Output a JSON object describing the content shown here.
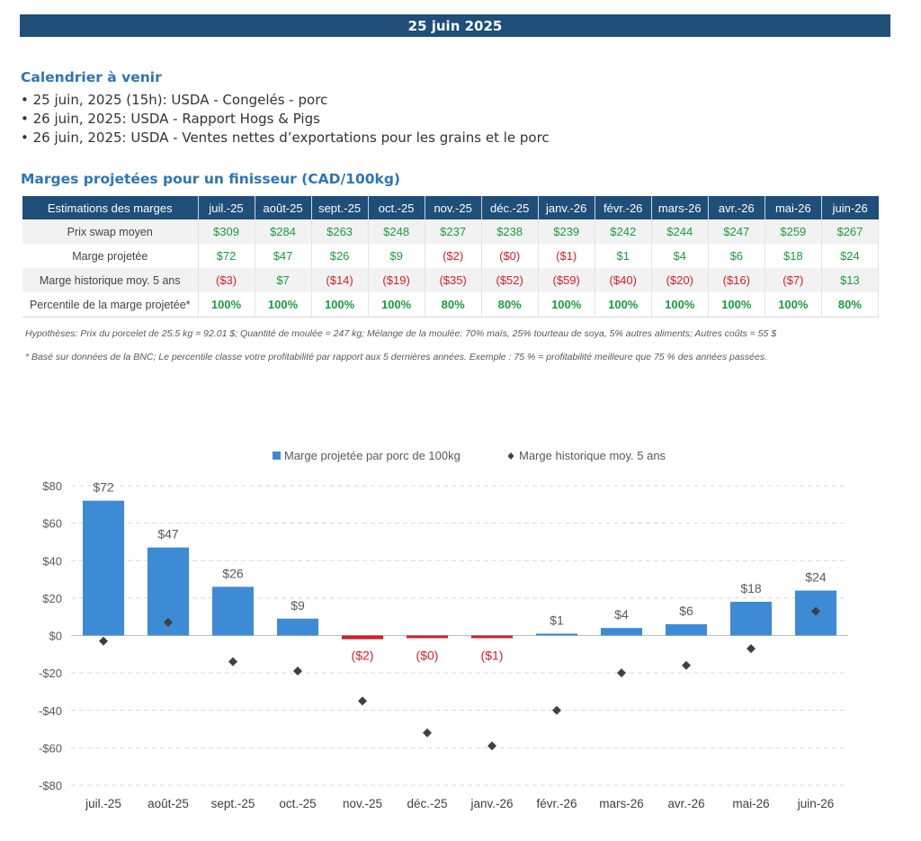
{
  "banner": {
    "date": "25 juin 2025"
  },
  "calendar": {
    "title": "Calendrier à venir",
    "items": [
      "25 juin, 2025 (15h): USDA - Congelés - porc",
      "26 juin, 2025: USDA - Rapport Hogs & Pigs",
      "26 juin, 2025: USDA - Ventes nettes d’exportations pour les grains et le porc"
    ]
  },
  "margins_table": {
    "title": "Marges projetées pour un finisseur (CAD/100kg)",
    "header_label": "Estimations des marges",
    "months": [
      "juil.-25",
      "août-25",
      "sept.-25",
      "oct.-25",
      "nov.-25",
      "déc.-25",
      "janv.-26",
      "févr.-26",
      "mars-26",
      "avr.-26",
      "mai-26",
      "juin-26"
    ],
    "rows": [
      {
        "label": "Prix swap moyen",
        "values": [
          "$309",
          "$284",
          "$263",
          "$248",
          "$237",
          "$238",
          "$239",
          "$242",
          "$244",
          "$247",
          "$259",
          "$267"
        ]
      },
      {
        "label": "Marge projetée",
        "values": [
          "$72",
          "$47",
          "$26",
          "$9",
          "($2)",
          "($0)",
          "($1)",
          "$1",
          "$4",
          "$6",
          "$18",
          "$24"
        ]
      },
      {
        "label": "Marge historique moy. 5 ans",
        "values": [
          "($3)",
          "$7",
          "($14)",
          "($19)",
          "($35)",
          "($52)",
          "($59)",
          "($40)",
          "($20)",
          "($16)",
          "($7)",
          "$13"
        ]
      },
      {
        "label": "Percentile de la marge projetée*",
        "values": [
          "100%",
          "100%",
          "100%",
          "100%",
          "80%",
          "80%",
          "100%",
          "100%",
          "100%",
          "100%",
          "100%",
          "80%"
        ]
      }
    ],
    "positive_color": "#1a9c3e",
    "negative_color": "#d0202a"
  },
  "notes": {
    "hypotheses": "Hypothèses: Prix du porcelet de 25.5 kg = 92.01 $; Quantité de moulée = 247 kg; Mélange de la moulée: 70% maïs, 25% tourteau de soya, 5% autres aliments; Autres coûts = 55 $",
    "footnote": "* Basé sur données de la BNC; Le percentile classe votre profitabilité par rapport aux 5 dernières années. Exemple : 75 % = profitabilité meilleure que 75 % des années passées."
  },
  "chart_data": {
    "type": "bar",
    "categories": [
      "juil.-25",
      "août-25",
      "sept.-25",
      "oct.-25",
      "nov.-25",
      "déc.-25",
      "janv.-26",
      "févr.-26",
      "mars-26",
      "avr.-26",
      "mai-26",
      "juin-26"
    ],
    "series": [
      {
        "name": "Marge projetée par porc de 100kg",
        "type": "bar",
        "values": [
          72,
          47,
          26,
          9,
          -2,
          -0.4,
          -1,
          1,
          4,
          6,
          18,
          24
        ],
        "labels": [
          "$72",
          "$47",
          "$26",
          "$9",
          "($2)",
          "($0)",
          "($1)",
          "$1",
          "$4",
          "$6",
          "$18",
          "$24"
        ],
        "color": "#3d8bd4",
        "negative_color": "#d0202a"
      },
      {
        "name": "Marge historique moy. 5 ans",
        "type": "scatter",
        "marker": "diamond",
        "values": [
          -3,
          7,
          -14,
          -19,
          -35,
          -52,
          -59,
          -40,
          -20,
          -16,
          -7,
          13
        ],
        "color": "#404040"
      }
    ],
    "ylim": [
      -80,
      80
    ],
    "yticks": [
      80,
      60,
      40,
      20,
      0,
      -20,
      -40,
      -60,
      -80
    ],
    "ytick_labels": [
      "$80",
      "$60",
      "$40",
      "$20",
      "$0",
      "-$20",
      "-$40",
      "-$60",
      "-$80"
    ],
    "grid": true,
    "legend": "top"
  }
}
